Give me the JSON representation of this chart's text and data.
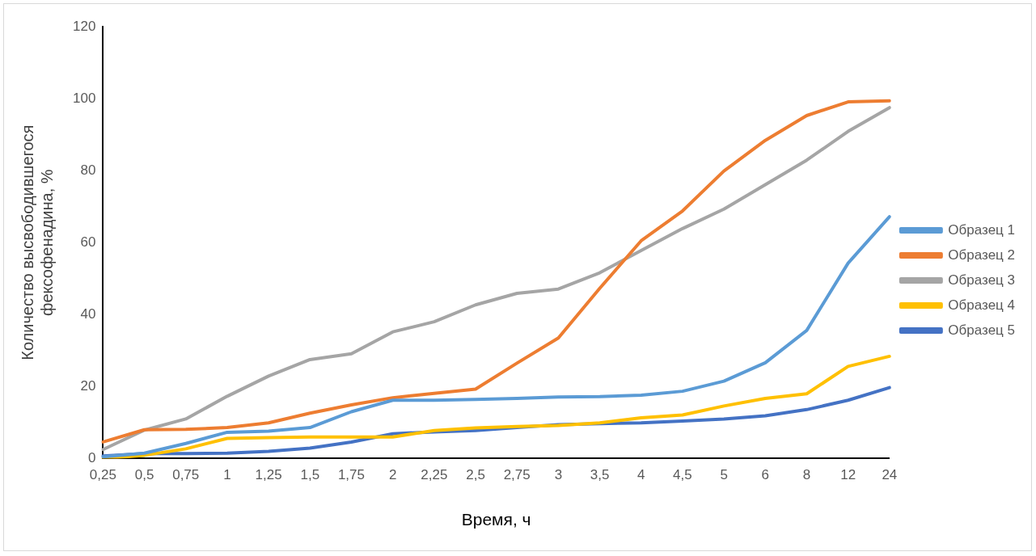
{
  "chart_data": {
    "type": "line",
    "xlabel": "Время, ч",
    "ylabel": "Количество высвободившегося фексофенадина, %",
    "categories": [
      "0,25",
      "0,5",
      "0,75",
      "1",
      "1,25",
      "1,5",
      "1,75",
      "2",
      "2,25",
      "2,5",
      "2,75",
      "3",
      "3,5",
      "4",
      "4,5",
      "5",
      "6",
      "8",
      "12",
      "24"
    ],
    "ylim": [
      0,
      120
    ],
    "yticks": [
      0,
      20,
      40,
      60,
      80,
      100,
      120
    ],
    "grid": false,
    "legend": "right",
    "marker": "none",
    "line_style": "solid",
    "series": [
      {
        "name": "Образец 1",
        "color": "#5b9bd5",
        "values": [
          0.5,
          1.5,
          4.2,
          7.3,
          7.6,
          8.6,
          13,
          16.2,
          16.2,
          16.4,
          16.7,
          17.1,
          17.2,
          17.6,
          18.7,
          21.5,
          26.6,
          35.6,
          54.3,
          67.2
        ]
      },
      {
        "name": "Образец 2",
        "color": "#ed7d31",
        "values": [
          4.6,
          8,
          8.1,
          8.6,
          9.9,
          12.6,
          14.9,
          16.9,
          18.1,
          19.3,
          26.5,
          33.5,
          47.3,
          60.5,
          68.8,
          79.9,
          88.4,
          95.3,
          99.1,
          99.4
        ]
      },
      {
        "name": "Образец 3",
        "color": "#a5a5a5",
        "values": [
          2.5,
          7.9,
          11,
          17.3,
          22.9,
          27.5,
          29.1,
          35.2,
          38,
          42.7,
          45.9,
          47.1,
          51.6,
          57.8,
          63.9,
          69.3,
          76.1,
          82.9,
          90.9,
          97.5
        ]
      },
      {
        "name": "Образец 4",
        "color": "#ffc000",
        "values": [
          0,
          0.9,
          2.7,
          5.6,
          5.8,
          6,
          6,
          6,
          7.8,
          8.5,
          8.9,
          9.2,
          9.9,
          11.3,
          12.1,
          14.6,
          16.7,
          18,
          25.6,
          28.4
        ]
      },
      {
        "name": "Образец 5",
        "color": "#4472c4",
        "values": [
          0.7,
          1.4,
          1.4,
          1.5,
          2,
          2.9,
          4.6,
          6.9,
          7.4,
          7.8,
          8.6,
          9.4,
          9.7,
          9.9,
          10.4,
          11,
          11.9,
          13.6,
          16.2,
          19.7
        ]
      }
    ]
  }
}
